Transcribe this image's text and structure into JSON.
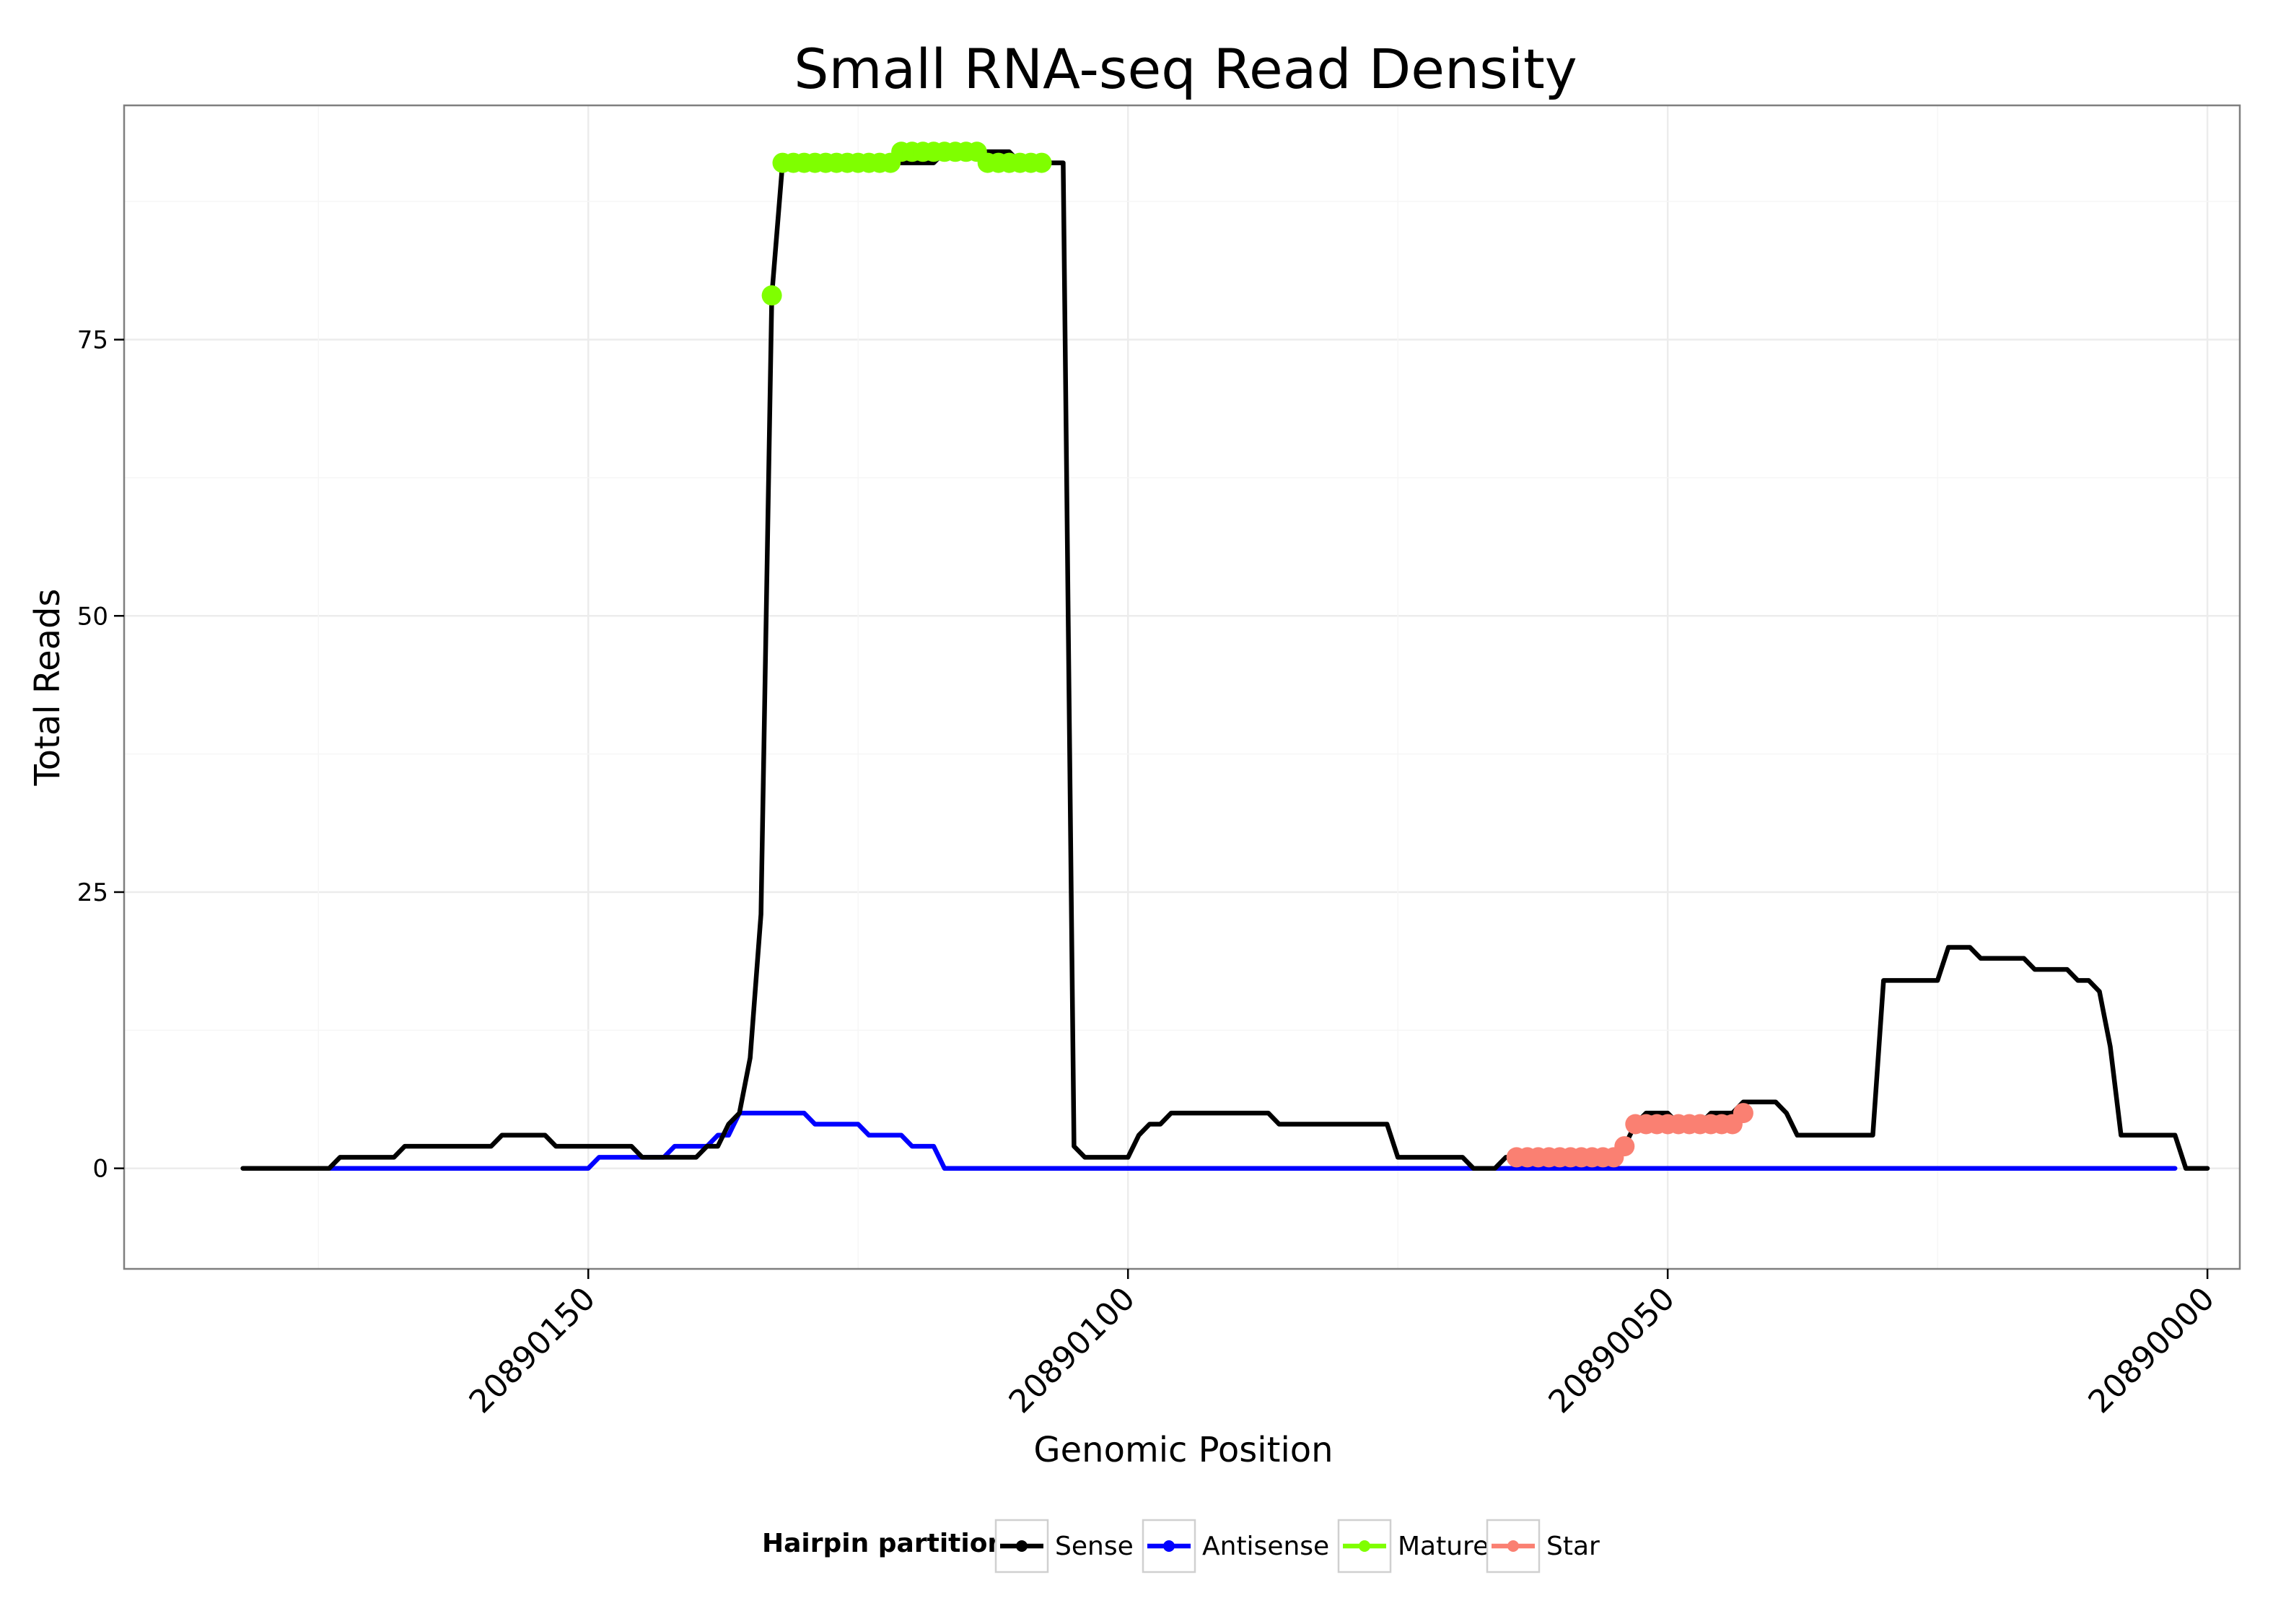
{
  "chart_data": {
    "type": "line",
    "title": "Small RNA-seq Read Density",
    "xlabel": "Genomic Position",
    "ylabel": "Total Reads",
    "xlim": [
      20890193,
      20889997
    ],
    "ylim": [
      -9.1,
      96.2
    ],
    "x_reversed": true,
    "x_ticks": [
      20890150,
      20890100,
      20890050,
      20890000
    ],
    "x_tick_labels": [
      "20890150",
      "20890100",
      "20890050",
      "20890000"
    ],
    "y_ticks": [
      0,
      25,
      50,
      75
    ],
    "y_tick_labels": [
      "0",
      "25",
      "50",
      "75"
    ],
    "grid": true,
    "legend": {
      "title": "Hairpin partition",
      "position": "bottom",
      "entries": [
        "Sense",
        "Antisense",
        "Mature",
        "Star"
      ]
    },
    "series": [
      {
        "name": "Sense",
        "color": "#000000",
        "style": "line",
        "points": [
          [
            20890182,
            0
          ],
          [
            20890174,
            0
          ],
          [
            20890173,
            1
          ],
          [
            20890168,
            1
          ],
          [
            20890167,
            2
          ],
          [
            20890159,
            2
          ],
          [
            20890158,
            3
          ],
          [
            20890154,
            3
          ],
          [
            20890153,
            2
          ],
          [
            20890146,
            2
          ],
          [
            20890145,
            1
          ],
          [
            20890140,
            1
          ],
          [
            20890139,
            2
          ],
          [
            20890138,
            2
          ],
          [
            20890137,
            4
          ],
          [
            20890136,
            5
          ],
          [
            20890135,
            10
          ],
          [
            20890134,
            23
          ],
          [
            20890133,
            79
          ],
          [
            20890132,
            91
          ],
          [
            20890118,
            91
          ],
          [
            20890117,
            92
          ],
          [
            20890111,
            92
          ],
          [
            20890110,
            91
          ],
          [
            20890106,
            91
          ],
          [
            20890105,
            2
          ],
          [
            20890104,
            1
          ],
          [
            20890100,
            1
          ],
          [
            20890099,
            3
          ],
          [
            20890098,
            4
          ],
          [
            20890097,
            4
          ],
          [
            20890096,
            5
          ],
          [
            20890087,
            5
          ],
          [
            20890086,
            4
          ],
          [
            20890076,
            4
          ],
          [
            20890075,
            1
          ],
          [
            20890069,
            1
          ],
          [
            20890068,
            0
          ],
          [
            20890066,
            0
          ],
          [
            20890065,
            1
          ],
          [
            20890055,
            1
          ],
          [
            20890054,
            2
          ],
          [
            20890053,
            4
          ],
          [
            20890052,
            5
          ],
          [
            20890050,
            5
          ],
          [
            20890049,
            4
          ],
          [
            20890047,
            4
          ],
          [
            20890046,
            5
          ],
          [
            20890044,
            5
          ],
          [
            20890043,
            6
          ],
          [
            20890040,
            6
          ],
          [
            20890039,
            5
          ],
          [
            20890038,
            3
          ],
          [
            20890031,
            3
          ],
          [
            20890030,
            17
          ],
          [
            20890025,
            17
          ],
          [
            20890024,
            20
          ],
          [
            20890022,
            20
          ],
          [
            20890021,
            19
          ],
          [
            20890017,
            19
          ],
          [
            20890016,
            18
          ],
          [
            20890013,
            18
          ],
          [
            20890012,
            17
          ],
          [
            20890011,
            17
          ],
          [
            20890010,
            16
          ],
          [
            20890009,
            11
          ],
          [
            20890008,
            3
          ],
          [
            20890003,
            3
          ],
          [
            20890002,
            0
          ],
          [
            20890000,
            0
          ]
        ]
      },
      {
        "name": "Antisense",
        "color": "#0000ff",
        "style": "line",
        "points": [
          [
            20890174,
            0
          ],
          [
            20890150,
            0
          ],
          [
            20890149,
            1
          ],
          [
            20890146,
            1
          ],
          [
            20890145,
            1
          ],
          [
            20890143,
            1
          ],
          [
            20890142,
            2
          ],
          [
            20890139,
            2
          ],
          [
            20890138,
            3
          ],
          [
            20890137,
            3
          ],
          [
            20890136,
            5
          ],
          [
            20890130,
            5
          ],
          [
            20890129,
            4
          ],
          [
            20890125,
            4
          ],
          [
            20890124,
            3
          ],
          [
            20890121,
            3
          ],
          [
            20890120,
            2
          ],
          [
            20890118,
            2
          ],
          [
            20890117,
            0
          ],
          [
            20890003,
            0
          ]
        ]
      },
      {
        "name": "Mature",
        "color": "#7fff00",
        "style": "points",
        "points": [
          [
            20890133,
            79
          ],
          [
            20890132,
            91
          ],
          [
            20890131,
            91
          ],
          [
            20890130,
            91
          ],
          [
            20890129,
            91
          ],
          [
            20890128,
            91
          ],
          [
            20890127,
            91
          ],
          [
            20890126,
            91
          ],
          [
            20890125,
            91
          ],
          [
            20890124,
            91
          ],
          [
            20890123,
            91
          ],
          [
            20890122,
            91
          ],
          [
            20890121,
            92
          ],
          [
            20890120,
            92
          ],
          [
            20890119,
            92
          ],
          [
            20890118,
            92
          ],
          [
            20890117,
            92
          ],
          [
            20890116,
            92
          ],
          [
            20890115,
            92
          ],
          [
            20890114,
            92
          ],
          [
            20890113,
            91
          ],
          [
            20890112,
            91
          ],
          [
            20890111,
            91
          ],
          [
            20890110,
            91
          ],
          [
            20890109,
            91
          ],
          [
            20890108,
            91
          ]
        ]
      },
      {
        "name": "Star",
        "color": "#fa8072",
        "style": "points",
        "points": [
          [
            20890064,
            1
          ],
          [
            20890063,
            1
          ],
          [
            20890062,
            1
          ],
          [
            20890061,
            1
          ],
          [
            20890060,
            1
          ],
          [
            20890059,
            1
          ],
          [
            20890058,
            1
          ],
          [
            20890057,
            1
          ],
          [
            20890056,
            1
          ],
          [
            20890055,
            1
          ],
          [
            20890054,
            2
          ],
          [
            20890053,
            4
          ],
          [
            20890052,
            4
          ],
          [
            20890051,
            4
          ],
          [
            20890050,
            4
          ],
          [
            20890049,
            4
          ],
          [
            20890048,
            4
          ],
          [
            20890047,
            4
          ],
          [
            20890046,
            4
          ],
          [
            20890045,
            4
          ],
          [
            20890044,
            4
          ],
          [
            20890043,
            5
          ]
        ]
      }
    ]
  }
}
